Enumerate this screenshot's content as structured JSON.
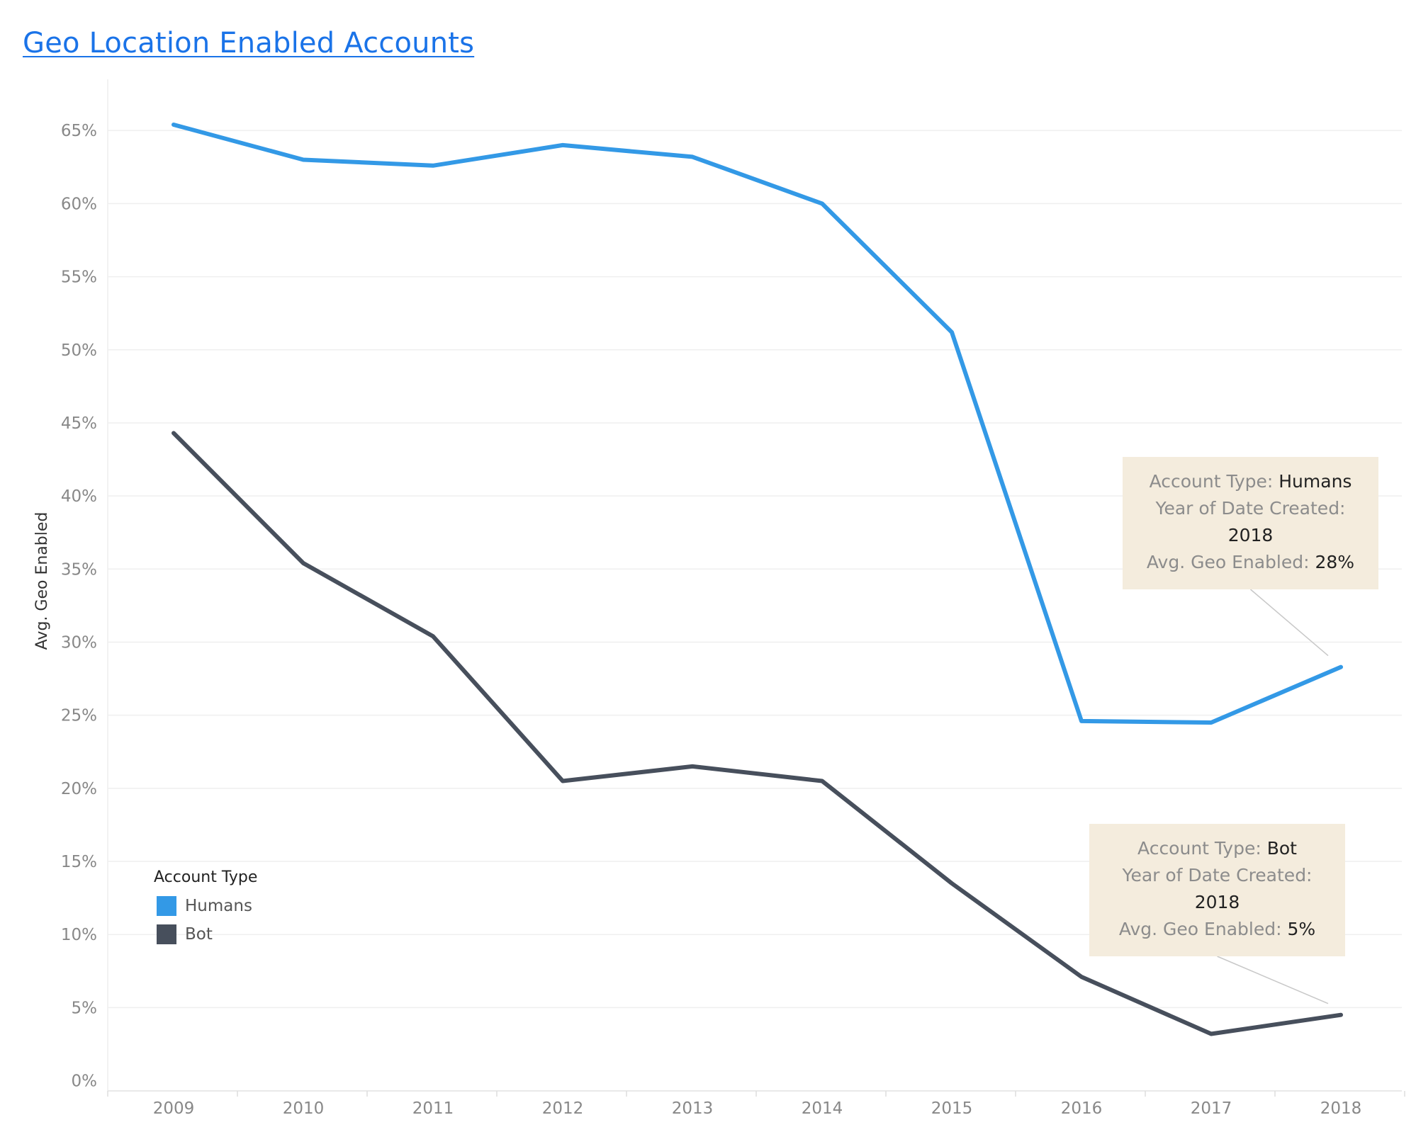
{
  "page": {
    "title": "Geo Location Enabled Accounts"
  },
  "chart_data": {
    "type": "line",
    "title": "Geo Location Enabled Accounts",
    "xlabel": "",
    "ylabel": "Avg. Geo Enabled",
    "x": [
      "2009",
      "2010",
      "2011",
      "2012",
      "2013",
      "2014",
      "2015",
      "2016",
      "2017",
      "2018"
    ],
    "y_ticks": [
      "0%",
      "5%",
      "10%",
      "15%",
      "20%",
      "25%",
      "30%",
      "35%",
      "40%",
      "45%",
      "50%",
      "55%",
      "60%",
      "65%"
    ],
    "y_tick_values": [
      0,
      5,
      10,
      15,
      20,
      25,
      30,
      35,
      40,
      45,
      50,
      55,
      60,
      65
    ],
    "ylim": [
      -0.7,
      68.5
    ],
    "y_unit": "%",
    "grid": "horizontal",
    "series": [
      {
        "name": "Humans",
        "color": "#3399e6",
        "values": [
          65.4,
          63.0,
          62.6,
          64.0,
          63.2,
          60.0,
          51.2,
          24.6,
          24.5,
          28.3
        ]
      },
      {
        "name": "Bot",
        "color": "#474f5c",
        "values": [
          44.3,
          35.4,
          30.4,
          20.5,
          21.5,
          20.5,
          13.5,
          7.1,
          3.2,
          4.5
        ]
      }
    ],
    "legend": {
      "title": "Account Type",
      "position": "bottom-left",
      "items": [
        "Humans",
        "Bot"
      ]
    },
    "annotations": [
      {
        "series": "Humans",
        "x": "2018",
        "line1_label": "Account Type:",
        "line1_value": "Humans",
        "line2_label": "Year of Date Created:",
        "line3_value": "2018",
        "line4_label": "Avg. Geo Enabled:",
        "line4_value": "28%"
      },
      {
        "series": "Bot",
        "x": "2018",
        "line1_label": "Account Type:",
        "line1_value": "Bot",
        "line2_label": "Year of Date Created:",
        "line3_value": "2018",
        "line4_label": "Avg. Geo Enabled:",
        "line4_value": "5%"
      }
    ]
  }
}
